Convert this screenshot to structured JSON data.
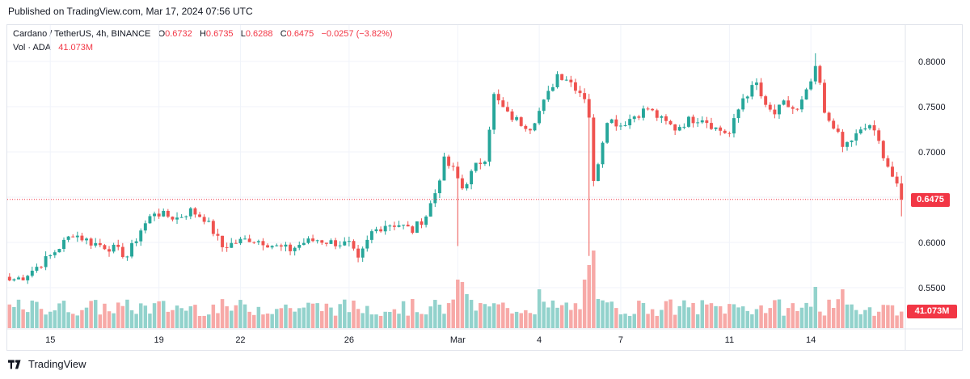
{
  "header": {
    "published": "Published on TradingView.com, Mar 17, 2024 07:56 UTC"
  },
  "legend": {
    "symbol": "Cardano / TetherUS, 4h, BINANCE",
    "o_label": "O",
    "o_value": "0.6732",
    "h_label": "H",
    "h_value": "0.6735",
    "l_label": "L",
    "l_value": "0.6288",
    "c_label": "C",
    "c_value": "0.6475",
    "change": "−0.0257 (−3.82%)",
    "vol_label": "Vol · ADA",
    "vol_value": "41.073M"
  },
  "footer": {
    "brand": "TradingView"
  },
  "colors": {
    "up": "#26a69a",
    "down": "#ef5350",
    "vol_up": "#92d2cc",
    "vol_down": "#f7a9a7",
    "grid": "#f0f3fa",
    "price_line": "#f23645"
  },
  "chart_data": {
    "type": "candlestick",
    "title": "Cardano / TetherUS, 4h, BINANCE",
    "ylim": [
      0.54,
      0.81
    ],
    "y_ticks": [
      "0.8000",
      "0.7500",
      "0.7000",
      "0.6500",
      "0.6000",
      "0.5500"
    ],
    "x_ticks": [
      "15",
      "19",
      "22",
      "26",
      "Mar",
      "4",
      "7",
      "11",
      "14"
    ],
    "x_tick_bars": [
      9,
      33,
      51,
      75,
      99,
      117,
      135,
      159,
      177
    ],
    "last_price": "0.6475",
    "last_price_value": 0.6475,
    "last_volume": "41.073M",
    "grid": true,
    "anchors": [
      [
        0,
        0.558
      ],
      [
        3,
        0.562
      ],
      [
        6,
        0.573
      ],
      [
        9,
        0.585
      ],
      [
        14,
        0.61
      ],
      [
        18,
        0.6
      ],
      [
        23,
        0.593
      ],
      [
        26,
        0.585
      ],
      [
        29,
        0.614
      ],
      [
        32,
        0.634
      ],
      [
        34,
        0.63
      ],
      [
        37,
        0.627
      ],
      [
        40,
        0.635
      ],
      [
        43,
        0.627
      ],
      [
        45,
        0.612
      ],
      [
        47,
        0.595
      ],
      [
        50,
        0.6
      ],
      [
        53,
        0.604
      ],
      [
        56,
        0.601
      ],
      [
        59,
        0.595
      ],
      [
        62,
        0.592
      ],
      [
        65,
        0.6
      ],
      [
        68,
        0.603
      ],
      [
        71,
        0.6
      ],
      [
        75,
        0.598
      ],
      [
        77,
        0.579
      ],
      [
        80,
        0.611
      ],
      [
        83,
        0.62
      ],
      [
        86,
        0.62
      ],
      [
        89,
        0.613
      ],
      [
        92,
        0.63
      ],
      [
        94,
        0.655
      ],
      [
        96,
        0.69
      ],
      [
        98,
        0.68
      ],
      [
        100,
        0.66
      ],
      [
        103,
        0.684
      ],
      [
        105,
        0.694
      ],
      [
        107,
        0.762
      ],
      [
        110,
        0.741
      ],
      [
        113,
        0.732
      ],
      [
        115,
        0.728
      ],
      [
        117,
        0.745
      ],
      [
        119,
        0.764
      ],
      [
        121,
        0.786
      ],
      [
        123,
        0.782
      ],
      [
        125,
        0.772
      ],
      [
        127,
        0.761
      ],
      [
        128,
        0.74
      ],
      [
        129,
        0.665
      ],
      [
        130,
        0.69
      ],
      [
        132,
        0.737
      ],
      [
        135,
        0.73
      ],
      [
        138,
        0.74
      ],
      [
        141,
        0.748
      ],
      [
        144,
        0.735
      ],
      [
        147,
        0.726
      ],
      [
        150,
        0.735
      ],
      [
        153,
        0.738
      ],
      [
        156,
        0.726
      ],
      [
        159,
        0.72
      ],
      [
        162,
        0.76
      ],
      [
        165,
        0.775
      ],
      [
        167,
        0.748
      ],
      [
        169,
        0.742
      ],
      [
        171,
        0.753
      ],
      [
        174,
        0.745
      ],
      [
        176,
        0.765
      ],
      [
        178,
        0.79
      ],
      [
        179,
        0.775
      ],
      [
        180,
        0.74
      ],
      [
        182,
        0.73
      ],
      [
        184,
        0.705
      ],
      [
        187,
        0.718
      ],
      [
        190,
        0.73
      ],
      [
        192,
        0.71
      ],
      [
        194,
        0.685
      ],
      [
        195,
        0.673
      ],
      [
        197,
        0.6475
      ]
    ],
    "volume_hint": "Volume bars per candle, spikes near bars 99-100 and 127-128",
    "volume_spikes": [
      [
        99,
        1.0
      ],
      [
        100,
        0.95
      ],
      [
        101,
        0.7
      ],
      [
        127,
        1.0
      ],
      [
        128,
        1.3
      ],
      [
        129,
        1.6
      ],
      [
        130,
        0.6
      ],
      [
        117,
        0.8
      ],
      [
        178,
        0.85
      ],
      [
        184,
        0.8
      ]
    ]
  }
}
